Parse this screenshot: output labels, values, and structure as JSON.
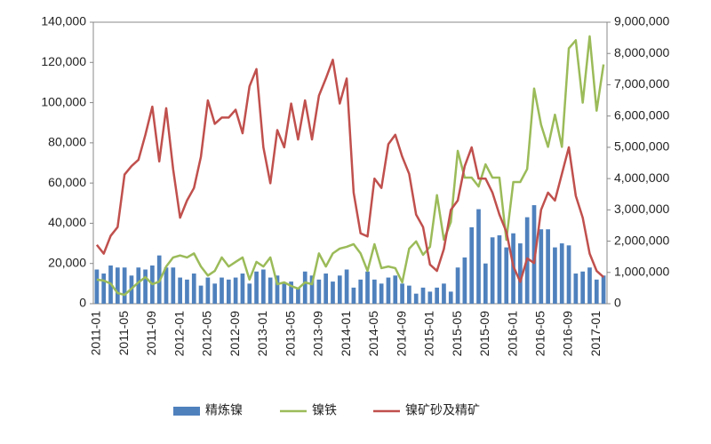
{
  "chart_data": {
    "type": "bar_line",
    "categories": [
      "2011-01",
      null,
      null,
      null,
      "2011-05",
      null,
      null,
      null,
      "2011-09",
      null,
      null,
      null,
      "2012-01",
      null,
      null,
      null,
      "2012-05",
      null,
      null,
      null,
      "2012-09",
      null,
      null,
      null,
      "2013-01",
      null,
      null,
      null,
      "2013-05",
      null,
      null,
      null,
      "2013-09",
      null,
      null,
      null,
      "2014-01",
      null,
      null,
      null,
      "2014-05",
      null,
      null,
      null,
      "2014-09",
      null,
      null,
      null,
      "2015-01",
      null,
      null,
      null,
      "2015-05",
      null,
      null,
      null,
      "2015-09",
      null,
      null,
      null,
      "2016-01",
      null,
      null,
      null,
      "2016-05",
      null,
      null,
      null,
      "2016-09",
      null,
      null,
      null,
      "2017-01",
      null
    ],
    "series": [
      {
        "name": "精炼镍",
        "type": "bar",
        "color": "#4f81bd",
        "values": [
          17000,
          15000,
          19000,
          18000,
          18000,
          14000,
          18000,
          17000,
          19000,
          24000,
          18000,
          18000,
          13000,
          12000,
          15000,
          9000,
          13000,
          10000,
          13000,
          12000,
          13000,
          15000,
          10000,
          16000,
          17000,
          13000,
          14000,
          10000,
          11000,
          8000,
          16000,
          14000,
          12000,
          15000,
          11000,
          14000,
          17000,
          8000,
          12000,
          16000,
          12000,
          10000,
          13000,
          14000,
          10000,
          9000,
          5000,
          8000,
          6000,
          8000,
          10000,
          6000,
          18000,
          23000,
          38000,
          47000,
          20000,
          33000,
          34000,
          28000,
          35000,
          30000,
          43000,
          49000,
          37000,
          37000,
          28000,
          30000,
          29000,
          15000,
          16000,
          18000,
          12000,
          14000
        ]
      },
      {
        "name": "镍铁",
        "type": "line",
        "color": "#9bbb59",
        "values": [
          12000,
          11500,
          10000,
          5300,
          4400,
          7500,
          10600,
          13200,
          9700,
          11000,
          18500,
          23000,
          24000,
          23000,
          25000,
          18500,
          14000,
          16300,
          23000,
          18500,
          20800,
          23000,
          12000,
          20800,
          18500,
          23000,
          9700,
          10600,
          8800,
          7500,
          10600,
          9700,
          25000,
          18500,
          25000,
          27400,
          28300,
          29600,
          25000,
          16300,
          29600,
          17700,
          18500,
          17700,
          10600,
          27400,
          31000,
          24300,
          28300,
          54000,
          31800,
          40600,
          76000,
          62700,
          62700,
          58300,
          69300,
          62700,
          62700,
          31800,
          60500,
          60500,
          67000,
          107000,
          89000,
          78000,
          94000,
          78000,
          127000,
          131000,
          100000,
          133000,
          96000,
          119000
        ]
      },
      {
        "name": "镍矿砂及精矿",
        "type": "line",
        "axis": "y2",
        "color": "#c0504d",
        "values": [
          1880000,
          1600000,
          2170000,
          2450000,
          4130000,
          4400000,
          4600000,
          5400000,
          6300000,
          4550000,
          6250000,
          4300000,
          2750000,
          3300000,
          3700000,
          4700000,
          6500000,
          5750000,
          5950000,
          5950000,
          6200000,
          5450000,
          6950000,
          7500000,
          5000000,
          3850000,
          5550000,
          5000000,
          6400000,
          5250000,
          6500000,
          5250000,
          6650000,
          7200000,
          7800000,
          6400000,
          7200000,
          3550000,
          2250000,
          2150000,
          4000000,
          3700000,
          5100000,
          5400000,
          4700000,
          4150000,
          2850000,
          2450000,
          1250000,
          1050000,
          1750000,
          3000000,
          3300000,
          4400000,
          5000000,
          4000000,
          4000000,
          3550000,
          2850000,
          2300000,
          1200000,
          700000,
          1450000,
          1300000,
          3000000,
          3550000,
          3300000,
          4150000,
          5000000,
          3450000,
          2750000,
          1600000,
          1050000,
          850000
        ]
      }
    ],
    "ylim": [
      0,
      140000
    ],
    "yticks": [
      0,
      {
        "value": 20000,
        "label": "20,000"
      },
      {
        "value": 40000,
        "label": "40,000"
      },
      {
        "value": 60000,
        "label": "60,000"
      },
      {
        "value": 80000,
        "label": "80,000"
      },
      {
        "value": 100000,
        "label": "100,000"
      },
      {
        "value": 120000,
        "label": "120,000"
      },
      {
        "value": 140000,
        "label": "140,000"
      }
    ],
    "y2lim": [
      0,
      9000000
    ],
    "y2ticks": [
      0,
      {
        "value": 1000000,
        "label": "1,000,000"
      },
      {
        "value": 2000000,
        "label": "2,000,000"
      },
      {
        "value": 3000000,
        "label": "3,000,000"
      },
      {
        "value": 4000000,
        "label": "4,000,000"
      },
      {
        "value": 5000000,
        "label": "5,000,000"
      },
      {
        "value": 6000000,
        "label": "6,000,000"
      },
      {
        "value": 7000000,
        "label": "7,000,000"
      },
      {
        "value": 8000000,
        "label": "8,000,000"
      },
      {
        "value": 9000000,
        "label": "9,000,000"
      }
    ],
    "legend": "bottom"
  }
}
